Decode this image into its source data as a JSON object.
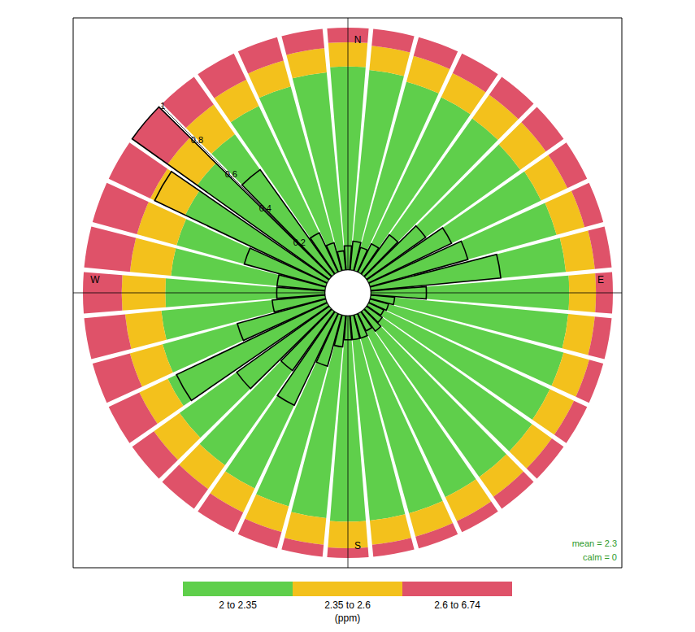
{
  "chart_data": {
    "type": "rose",
    "categories": [
      "N",
      null,
      null,
      null,
      null,
      null,
      null,
      null,
      null,
      "E",
      null,
      null,
      null,
      null,
      null,
      null,
      null,
      null,
      "S",
      null,
      null,
      null,
      null,
      null,
      null,
      null,
      null,
      "W",
      null,
      null,
      null,
      null,
      null,
      null,
      null,
      null
    ],
    "series": [
      {
        "name": "2 to 2.35",
        "color": "#5fcf4b",
        "values": [
          0.84,
          0.83,
          0.81,
          0.8,
          0.79,
          0.78,
          0.79,
          0.8,
          0.81,
          0.82,
          0.82,
          0.83,
          0.83,
          0.84,
          0.84,
          0.84,
          0.85,
          0.85,
          0.85,
          0.84,
          0.82,
          0.8,
          0.78,
          0.76,
          0.73,
          0.7,
          0.68,
          0.66,
          0.64,
          0.64,
          0.65,
          0.67,
          0.71,
          0.76,
          0.79,
          0.82
        ]
      },
      {
        "name": "2.35 to 2.6",
        "color": "#f3c11c",
        "values": [
          0.1,
          0.1,
          0.11,
          0.11,
          0.12,
          0.13,
          0.12,
          0.12,
          0.12,
          0.11,
          0.11,
          0.11,
          0.11,
          0.1,
          0.1,
          0.11,
          0.1,
          0.1,
          0.11,
          0.11,
          0.11,
          0.11,
          0.12,
          0.13,
          0.13,
          0.14,
          0.15,
          0.18,
          0.17,
          0.17,
          0.16,
          0.15,
          0.15,
          0.12,
          0.11,
          0.1
        ]
      },
      {
        "name": "2.6 to 6.74",
        "color": "#df5269",
        "values": [
          0.06,
          0.07,
          0.08,
          0.09,
          0.09,
          0.09,
          0.09,
          0.08,
          0.07,
          0.07,
          0.07,
          0.06,
          0.06,
          0.06,
          0.06,
          0.05,
          0.05,
          0.05,
          0.04,
          0.05,
          0.07,
          0.09,
          0.1,
          0.11,
          0.14,
          0.16,
          0.17,
          0.16,
          0.19,
          0.19,
          0.19,
          0.18,
          0.14,
          0.12,
          0.1,
          0.08
        ]
      }
    ],
    "frequency": [
      0.1,
      0.12,
      0.1,
      0.13,
      0.2,
      0.3,
      0.38,
      0.42,
      0.54,
      0.23,
      0.1,
      0.08,
      0.07,
      0.08,
      0.1,
      0.08,
      0.1,
      0.1,
      0.1,
      0.13,
      0.22,
      0.42,
      0.3,
      0.47,
      0.69,
      0.38,
      0.22,
      0.2,
      0.2,
      0.35,
      0.79,
      1,
      0.53,
      0.18,
      0.12,
      0.08
    ],
    "ylim": [
      0,
      1
    ],
    "yticks": [
      0.2,
      0.4,
      0.6,
      0.8,
      1
    ],
    "stacked": true,
    "legend": "bottom",
    "legend_title": "(ppm)",
    "annotations": [
      "mean = 2.3",
      "calm = 0"
    ]
  }
}
